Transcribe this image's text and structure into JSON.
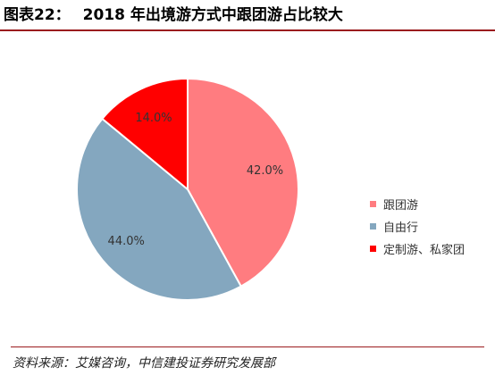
{
  "header": {
    "figure_label": "图表22：",
    "title": "2018 年出境游方式中跟团游占比较大"
  },
  "chart_data": {
    "type": "pie",
    "title": "2018 年出境游方式中跟团游占比较大",
    "categories": [
      "跟团游",
      "自由行",
      "定制游、私家团"
    ],
    "values": [
      42.0,
      44.0,
      14.0
    ],
    "value_labels": [
      "42.0%",
      "44.0%",
      "14.0%"
    ],
    "unit": "%",
    "colors": [
      "#ff7c80",
      "#84a7bf",
      "#ff0000"
    ],
    "start_angle": "12 o'clock",
    "direction": "clockwise",
    "legend_position": "right"
  },
  "footer": {
    "source": "资料来源：艾媒咨询，中信建投证券研究发展部"
  }
}
